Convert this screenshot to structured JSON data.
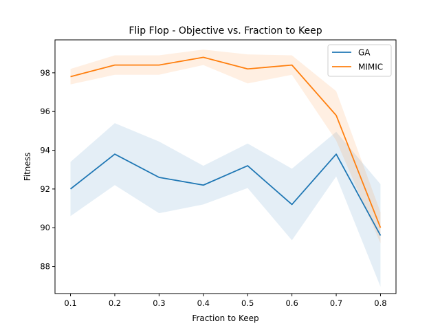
{
  "chart_data": {
    "type": "line",
    "title": "Flip Flop - Objective vs. Fraction to Keep",
    "xlabel": "Fraction to Keep",
    "ylabel": "Fitness",
    "xlim": [
      0.065,
      0.835
    ],
    "ylim": [
      86.6,
      99.7
    ],
    "xticks": [
      "0.1",
      "0.2",
      "0.3",
      "0.4",
      "0.5",
      "0.6",
      "0.7",
      "0.8"
    ],
    "yticks": [
      "88",
      "90",
      "92",
      "94",
      "96",
      "98"
    ],
    "grid": false,
    "legend_position": "top-right",
    "x": [
      0.1,
      0.2,
      0.3,
      0.4,
      0.5,
      0.6,
      0.7,
      0.8
    ],
    "series": [
      {
        "name": "GA",
        "color": "#1f77b4",
        "values": [
          92.0,
          93.8,
          92.6,
          92.2,
          93.2,
          91.2,
          93.8,
          89.6
        ],
        "lower": [
          90.6,
          92.2,
          90.75,
          91.2,
          92.05,
          89.35,
          92.65,
          86.95
        ],
        "upper": [
          93.4,
          95.4,
          94.45,
          93.2,
          94.35,
          93.05,
          94.95,
          92.25
        ]
      },
      {
        "name": "MIMIC",
        "color": "#ff7f0e",
        "values": [
          97.8,
          98.4,
          98.4,
          98.8,
          98.2,
          98.4,
          95.8,
          90.0
        ],
        "lower": [
          97.4,
          97.9,
          97.9,
          98.4,
          97.45,
          97.9,
          94.5,
          89.2
        ],
        "upper": [
          98.2,
          98.9,
          98.9,
          99.2,
          98.95,
          98.9,
          97.05,
          90.8
        ]
      }
    ]
  }
}
